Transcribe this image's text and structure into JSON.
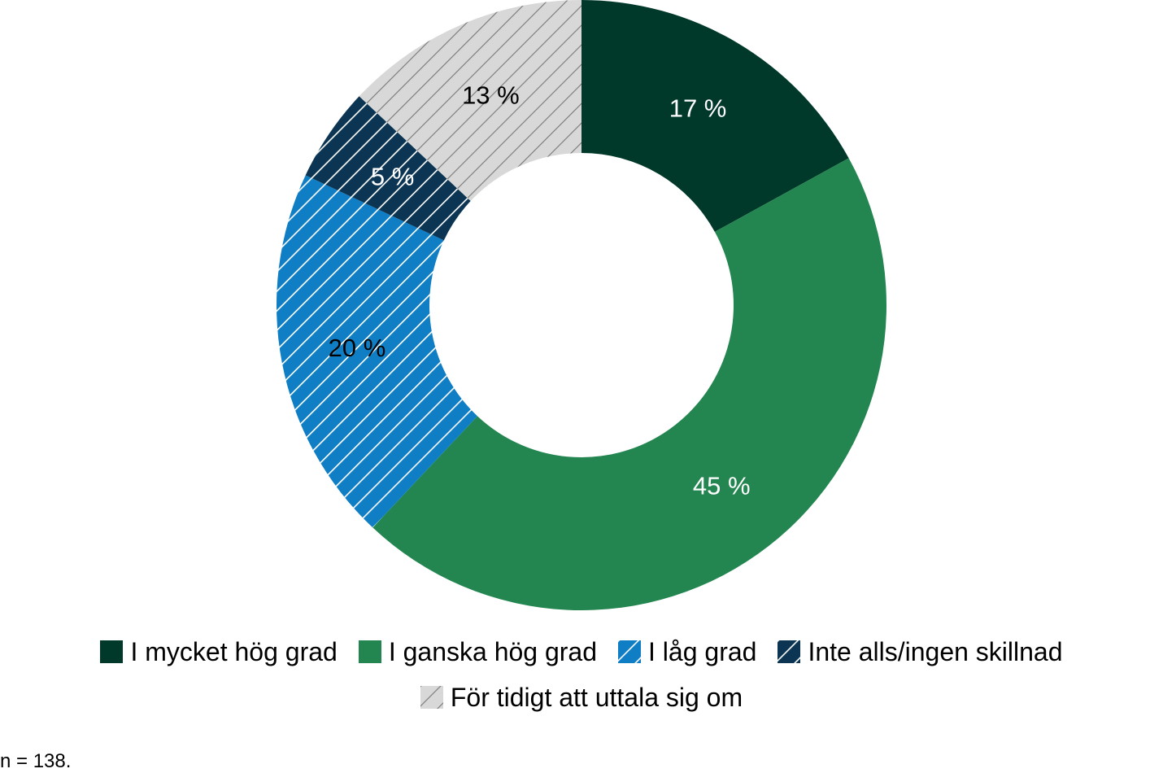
{
  "chart_data": {
    "type": "pie",
    "subtype": "donut",
    "categories": [
      "I mycket hög grad",
      "I ganska hög grad",
      "I låg grad",
      "Inte alls/ingen skillnad",
      "För tidigt att uttala sig om"
    ],
    "values": [
      17,
      45,
      20,
      5,
      13
    ],
    "value_labels": [
      "17 %",
      "45 %",
      "20 %",
      "5 %",
      "13 %"
    ],
    "colors": [
      "#00382a",
      "#238650",
      "#0f7ec4",
      "#0b3552",
      "#d8d8d8"
    ],
    "patterns": [
      "solid",
      "solid",
      "hatch",
      "hatch",
      "hatch"
    ],
    "start_angle": "top",
    "direction": "clockwise",
    "legend_position": "bottom"
  },
  "note": "n = 138."
}
